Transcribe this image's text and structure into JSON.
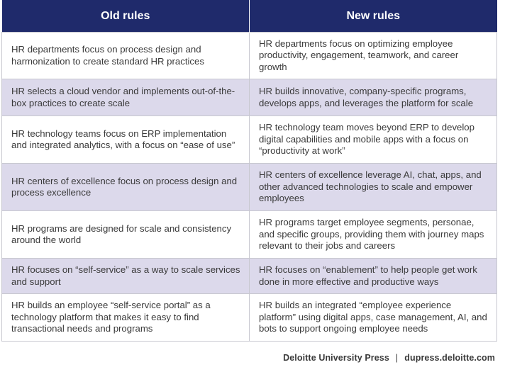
{
  "colors": {
    "header_bg": "#1f2a6b",
    "row_shaded": "#dcd9eb",
    "row_plain": "#ffffff"
  },
  "table": {
    "headers": [
      "Old rules",
      "New rules"
    ],
    "rows": [
      {
        "old": "HR departments focus on process design and harmonization to create standard HR practices",
        "new": "HR departments focus on optimizing employee productivity, engagement, teamwork, and career growth",
        "shaded": false
      },
      {
        "old": "HR selects a cloud vendor and implements out-of-the-box practices to create scale",
        "new": "HR builds innovative, company-specific programs, develops apps, and leverages the platform for scale",
        "shaded": true
      },
      {
        "old": "HR technology teams focus on ERP implementation and integrated analytics, with a focus on “ease of use”",
        "new": "HR technology team moves beyond ERP to develop digital capabilities and mobile apps with a focus on “productivity at work”",
        "shaded": false
      },
      {
        "old": "HR centers of excellence focus on process design and process excellence",
        "new": "HR centers of excellence leverage AI, chat, apps, and other advanced technologies to scale and empower employees",
        "shaded": true
      },
      {
        "old": "HR programs are designed for scale and consistency around the world",
        "new": "HR programs target employee segments, personae, and specific groups, providing them with journey maps relevant to their jobs and careers",
        "shaded": false
      },
      {
        "old": "HR focuses on “self-service” as a way to scale services and support",
        "new": "HR focuses on “enablement” to help people get work done in more effective and productive ways",
        "shaded": true
      },
      {
        "old": "HR builds an employee “self-service portal” as a technology platform that makes it easy to find transactional needs and programs",
        "new": "HR builds an integrated “employee experience platform” using digital apps, case management, AI, and bots to support ongoing employee needs",
        "shaded": false
      }
    ]
  },
  "footer": {
    "source": "Deloitte University Press",
    "separator": "|",
    "url": "dupress.deloitte.com"
  }
}
